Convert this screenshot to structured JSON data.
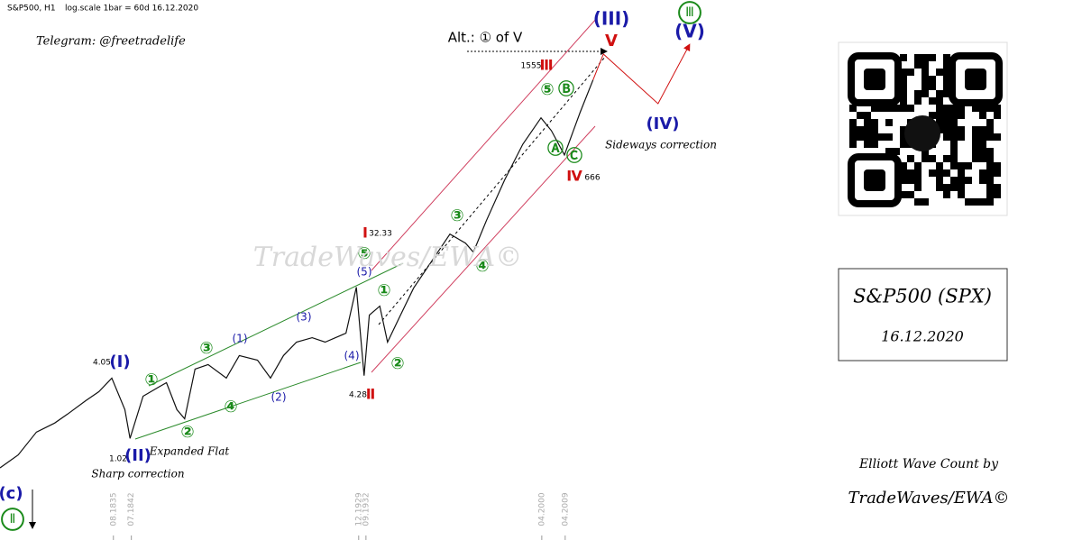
{
  "chart_data": {
    "type": "line",
    "log_scale": true,
    "x": [
      1792,
      1799,
      1806,
      1813,
      1818,
      1825,
      1830,
      1835,
      1840,
      1842,
      1847,
      1853,
      1856,
      1860,
      1863,
      1867,
      1872,
      1879,
      1884,
      1891,
      1896,
      1901,
      1906,
      1912,
      1917,
      1925,
      1929,
      1932,
      1934,
      1938,
      1941,
      1946,
      1951,
      1958,
      1965,
      1971,
      1974,
      1979,
      1986,
      1993,
      2000,
      2004,
      2009,
      2015,
      2020,
      2024,
      2045,
      2057
    ],
    "series": [
      {
        "color": "#111111",
        "values": [
          0.52,
          0.7,
          1.18,
          1.45,
          1.78,
          2.42,
          2.97,
          4.05,
          1.97,
          1.02,
          2.68,
          3.3,
          3.65,
          1.97,
          1.6,
          4.98,
          5.52,
          4.05,
          6.78,
          6.11,
          4.05,
          6.78,
          9.22,
          10.2,
          9.22,
          11.3,
          32.33,
          4.28,
          17.1,
          21,
          9.22,
          17.1,
          31.7,
          58.7,
          109,
          88.6,
          72.1,
          148,
          375,
          851,
          1555,
          1161,
          666,
          1753,
          3700,
          null,
          null,
          null
        ]
      },
      {
        "color": "#d01010",
        "values": [
          null,
          null,
          null,
          null,
          null,
          null,
          null,
          null,
          null,
          null,
          null,
          null,
          null,
          null,
          null,
          null,
          null,
          null,
          null,
          null,
          null,
          null,
          null,
          null,
          null,
          null,
          null,
          null,
          null,
          null,
          null,
          null,
          null,
          null,
          null,
          null,
          null,
          null,
          null,
          null,
          null,
          null,
          null,
          null,
          3700,
          6680,
          2150,
          8200
        ]
      }
    ],
    "xlim": [
      1792,
      2208
    ],
    "ylim": [
      0.1,
      23000
    ],
    "xticks": [
      {
        "value": 1835.6,
        "label": "08.1835"
      },
      {
        "value": 1842.5,
        "label": "07.1842"
      },
      {
        "value": 1929.9,
        "label": "12.1929"
      },
      {
        "value": 1932.7,
        "label": "09.1932"
      },
      {
        "value": 2000.3,
        "label": "04.2000"
      },
      {
        "value": 2009.3,
        "label": "04.2009"
      }
    ],
    "annotations": [
      "S&P500, H1",
      "log.scale 1bar = 60d 16.12.2020",
      "Telegram: @freetradelife",
      "(c)",
      "Ⅱ",
      "Alt.: ① of V",
      "(III)",
      "Ⅲ",
      "(V)",
      "V",
      "Ⅲ",
      "⑤",
      "Ⓑ",
      "Ⓐ",
      "Ⓒ",
      "Ⅳ",
      "(IV)",
      "Sideways correction",
      "Ⅰ",
      "⑤",
      "(5)",
      "①",
      "②",
      "③",
      "④",
      "(3)",
      "(1)",
      "(4)",
      "(2)",
      "(I)",
      "①",
      "③",
      "④",
      "②",
      "(II)",
      "Sharp correction",
      "Expanded Flat",
      "Ⅱ",
      "S&P500 (SPX)",
      "16.12.2020",
      "Elliott Wave Count by",
      "TradeWaves/EWA©",
      "TradeWaves/EWA©"
    ]
  }
}
